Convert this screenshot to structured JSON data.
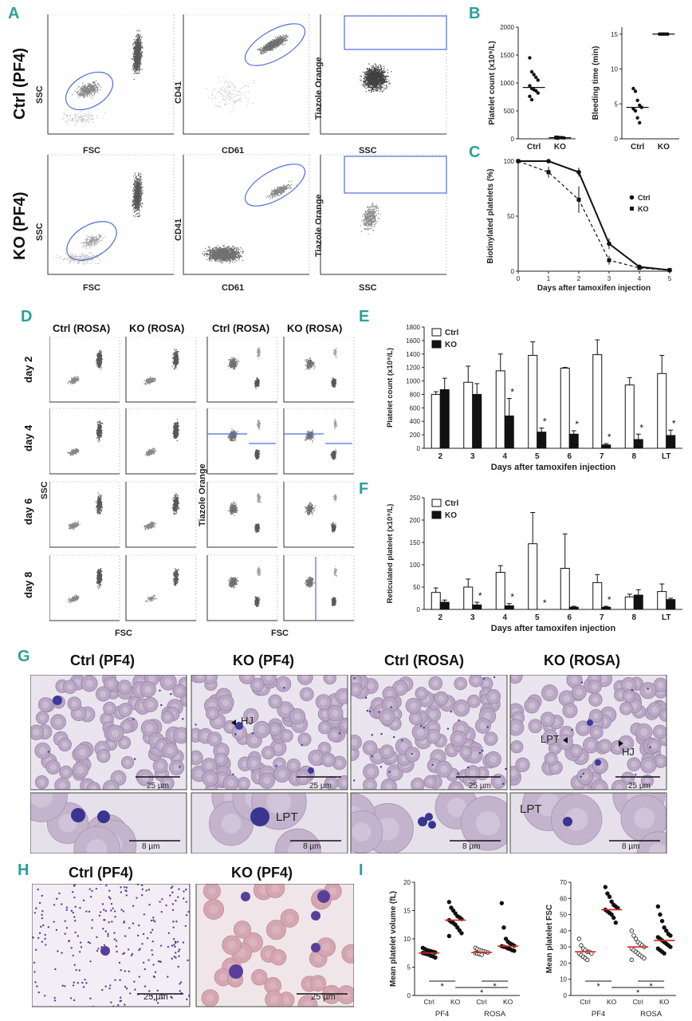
{
  "panel_letters": {
    "A": "A",
    "B": "B",
    "C": "C",
    "D": "D",
    "E": "E",
    "F": "F",
    "G": "G",
    "H": "H",
    "I": "I"
  },
  "panelA": {
    "row_labels": [
      "Ctrl (PF4)",
      "KO (PF4)"
    ],
    "axes": [
      {
        "x": "FSC",
        "y": "SSC"
      },
      {
        "x": "CD61",
        "y": "CD41"
      },
      {
        "x": "SSC",
        "y": "Tiazole Orange"
      }
    ]
  },
  "panelD": {
    "col_headers": [
      "Ctrl (ROSA)",
      "KO (ROSA)",
      "Ctrl (ROSA)",
      "KO (ROSA)"
    ],
    "row_labels": [
      "day 2",
      "day 4",
      "day 6",
      "day 8"
    ],
    "left_axes": {
      "x": "FSC",
      "y": "SSC"
    },
    "right_axes": {
      "x": "FSC",
      "y": "Tiazole Orange"
    }
  },
  "panelG": {
    "headers": [
      "Ctrl (PF4)",
      "KO (PF4)",
      "Ctrl (ROSA)",
      "KO (ROSA)"
    ],
    "scale_top": "25 µm",
    "scale_bottom": "8 µm",
    "annotations": {
      "hj": "HJ",
      "lpt": "LPT"
    }
  },
  "panelH": {
    "headers": [
      "Ctrl (PF4)",
      "KO (PF4)"
    ],
    "scale": "25 µm"
  },
  "colors": {
    "accent": "#2aa19a",
    "gate": "#4f6fd8",
    "median": "#d7261e",
    "cell": "#b9a7c4",
    "stain": "#3d3a9a"
  },
  "chart_data": [
    {
      "id": "B1",
      "type": "scatter",
      "categories": [
        "Ctrl",
        "KO"
      ],
      "ylabel": "Platelet count (x10⁹/L)",
      "ylim": [
        0,
        2000
      ],
      "yticks": [
        0,
        500,
        1000,
        1500,
        2000
      ],
      "series": [
        {
          "category": "Ctrl",
          "values": [
            1450,
            1200,
            1150,
            1100,
            1050,
            950,
            900,
            880,
            860,
            820,
            760,
            700
          ],
          "median": 920
        },
        {
          "category": "KO",
          "values": [
            30,
            25,
            20,
            20,
            15,
            15,
            10
          ],
          "median": 20
        }
      ]
    },
    {
      "id": "B2",
      "type": "scatter",
      "categories": [
        "Ctrl",
        "KO"
      ],
      "ylabel": "Bleeding time (min)",
      "ylim": [
        0,
        16
      ],
      "yticks": [
        0,
        5,
        10,
        15
      ],
      "series": [
        {
          "category": "Ctrl",
          "values": [
            7.2,
            6.8,
            5.5,
            4.8,
            4.5,
            4.3,
            4.0,
            3.0,
            2.3
          ],
          "median": 4.5
        },
        {
          "category": "KO",
          "values": [
            15,
            15,
            15,
            15,
            15
          ],
          "median": 15
        }
      ]
    },
    {
      "id": "C",
      "type": "line",
      "xlabel": "Days after tamoxifen injection",
      "ylabel": "Biotinylated platelets (%)",
      "ylim": [
        0,
        100
      ],
      "yticks": [
        0,
        50,
        100
      ],
      "x": [
        0,
        1,
        2,
        3,
        4,
        5
      ],
      "series": [
        {
          "name": "Ctrl",
          "values": [
            100,
            100,
            90,
            25,
            4,
            1
          ],
          "err": [
            2,
            2,
            4,
            5,
            1,
            1
          ]
        },
        {
          "name": "KO",
          "values": [
            100,
            90,
            65,
            10,
            3,
            1
          ],
          "err": [
            2,
            5,
            12,
            4,
            1,
            1
          ]
        }
      ],
      "legend_position": "right"
    },
    {
      "id": "E",
      "type": "bar",
      "xlabel": "Days after tamoxifen injection",
      "ylabel": "Platelet count (x10⁹/L)",
      "ylim": [
        0,
        1800
      ],
      "yticks": [
        0,
        200,
        400,
        600,
        800,
        1000,
        1200,
        1400,
        1600,
        1800
      ],
      "categories": [
        "2",
        "3",
        "4",
        "5",
        "6",
        "7",
        "8",
        "LT"
      ],
      "series": [
        {
          "name": "Ctrl",
          "values": [
            800,
            980,
            1150,
            1380,
            1190,
            1390,
            940,
            1110
          ],
          "err": [
            40,
            240,
            250,
            200,
            10,
            220,
            110,
            270
          ]
        },
        {
          "name": "KO",
          "values": [
            870,
            800,
            480,
            240,
            210,
            50,
            130,
            190
          ],
          "err": [
            170,
            160,
            260,
            60,
            50,
            20,
            80,
            80
          ]
        }
      ],
      "significance": [
        "",
        "",
        "*",
        "*",
        "*",
        "*",
        "*",
        "*"
      ],
      "legend_position": "top-left"
    },
    {
      "id": "F",
      "type": "bar",
      "xlabel": "Days after tamoxifen injection",
      "ylabel": "Reticulated platelet (x10⁹/L)",
      "ylim": [
        0,
        250
      ],
      "yticks": [
        0,
        50,
        100,
        150,
        200,
        250
      ],
      "categories": [
        "2",
        "3",
        "4",
        "5",
        "6",
        "7",
        "8",
        "LT"
      ],
      "series": [
        {
          "name": "Ctrl",
          "values": [
            38,
            50,
            83,
            147,
            92,
            60,
            28,
            40
          ],
          "err": [
            10,
            18,
            15,
            70,
            77,
            18,
            6,
            17
          ]
        },
        {
          "name": "KO",
          "values": [
            16,
            10,
            8,
            0,
            5,
            5,
            32,
            22
          ],
          "err": [
            5,
            6,
            5,
            0,
            2,
            2,
            12,
            3
          ]
        }
      ],
      "significance": [
        "",
        "*",
        "*",
        "*",
        "",
        "*",
        "",
        ""
      ],
      "legend_position": "top-left"
    },
    {
      "id": "I1",
      "type": "scatter",
      "groups": [
        "PF4",
        "ROSA"
      ],
      "categories": [
        "Ctrl",
        "KO",
        "Ctrl",
        "KO"
      ],
      "ylabel": "Mean platelet volume (fL)",
      "ylim": [
        0,
        20
      ],
      "yticks": [
        0,
        5,
        10,
        15,
        20
      ],
      "series": [
        {
          "category": "Ctrl",
          "group": "PF4",
          "values": [
            8.4,
            8.2,
            8.0,
            7.9,
            7.8,
            7.7,
            7.6,
            7.5,
            7.4,
            7.3,
            7.2,
            7.0,
            6.9,
            6.7
          ],
          "median": 7.5,
          "marker": "filled"
        },
        {
          "category": "KO",
          "group": "PF4",
          "values": [
            16.5,
            15.5,
            15.0,
            14.5,
            14.0,
            13.8,
            13.5,
            13.3,
            13.0,
            12.8,
            12.5,
            12.0,
            11.5,
            11.0,
            10.5
          ],
          "median": 13.3,
          "marker": "filled"
        },
        {
          "category": "Ctrl",
          "group": "ROSA",
          "values": [
            8.4,
            8.2,
            8.0,
            7.9,
            7.8,
            7.7,
            7.6,
            7.5,
            7.4,
            7.3,
            7.2
          ],
          "median": 7.6,
          "marker": "open"
        },
        {
          "category": "KO",
          "group": "ROSA",
          "values": [
            16.3,
            12.0,
            10.0,
            9.5,
            9.2,
            9.0,
            8.8,
            8.7,
            8.6,
            8.5,
            8.3,
            8.2,
            8.0,
            7.9
          ],
          "median": 8.7,
          "marker": "filled"
        }
      ],
      "significance": [
        "*",
        "*",
        "*"
      ]
    },
    {
      "id": "I2",
      "type": "scatter",
      "groups": [
        "PF4",
        "ROSA"
      ],
      "categories": [
        "Ctrl",
        "KO",
        "Ctrl",
        "KO"
      ],
      "ylabel": "Mean platelet FSC",
      "ylim": [
        0,
        70
      ],
      "yticks": [
        0,
        10,
        20,
        30,
        40,
        50,
        60,
        70
      ],
      "series": [
        {
          "category": "Ctrl",
          "group": "PF4",
          "values": [
            35,
            31,
            29,
            28,
            27,
            27,
            26,
            26,
            25,
            24,
            23,
            22
          ],
          "median": 27,
          "marker": "open"
        },
        {
          "category": "KO",
          "group": "PF4",
          "values": [
            67,
            63,
            61,
            58,
            56,
            55,
            54,
            53,
            52,
            51,
            50,
            48,
            45
          ],
          "median": 53,
          "marker": "filled"
        },
        {
          "category": "Ctrl",
          "group": "ROSA",
          "values": [
            40,
            37,
            35,
            33,
            32,
            31,
            30,
            29,
            28,
            27,
            26,
            25,
            24,
            23,
            22
          ],
          "median": 30,
          "marker": "open"
        },
        {
          "category": "KO",
          "group": "ROSA",
          "values": [
            55,
            50,
            46,
            42,
            40,
            38,
            37,
            36,
            35,
            34,
            33,
            32,
            31,
            30,
            29,
            28,
            27,
            26
          ],
          "median": 34,
          "marker": "filled"
        }
      ],
      "significance": [
        "*",
        "*",
        "*"
      ]
    }
  ]
}
